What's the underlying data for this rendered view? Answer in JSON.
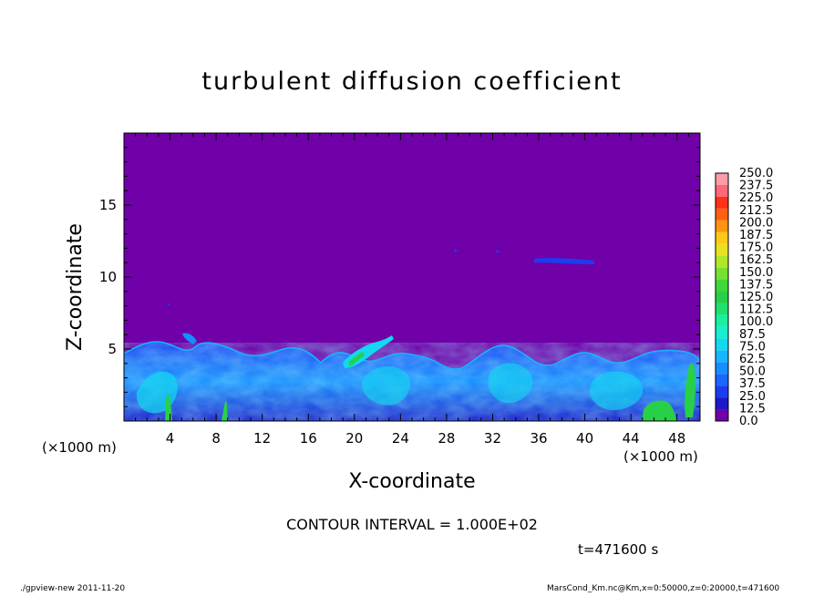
{
  "chart_data": {
    "type": "heatmap",
    "title": "turbulent diffusion coefficient",
    "xlabel": "X-coordinate",
    "ylabel": "Z-coordinate",
    "x_unit": "(×1000 m)",
    "z_unit": "(×1000 m)",
    "xlim": [
      0,
      50
    ],
    "ylim": [
      0,
      20
    ],
    "x_ticks": [
      4,
      8,
      12,
      16,
      20,
      24,
      28,
      32,
      36,
      40,
      44,
      48
    ],
    "y_ticks": [
      5,
      10,
      15
    ],
    "colorbar": {
      "levels": [
        "0.0",
        "12.5",
        "25.0",
        "37.5",
        "50.0",
        "62.5",
        "75.0",
        "87.5",
        "100.0",
        "112.5",
        "125.0",
        "137.5",
        "150.0",
        "162.5",
        "175.0",
        "187.5",
        "200.0",
        "212.5",
        "225.0",
        "237.5",
        "250.0"
      ],
      "colors": [
        "#7000a8",
        "#1d18c8",
        "#1c3cf0",
        "#1a66ff",
        "#148fff",
        "#16b6ff",
        "#12d8f0",
        "#18eed0",
        "#18f0a0",
        "#20e070",
        "#28d048",
        "#40d838",
        "#78e030",
        "#b0e828",
        "#e8e020",
        "#ffc818",
        "#ff9410",
        "#ff6010",
        "#ff3018",
        "#ff6878",
        "#ff9ca8"
      ]
    },
    "background_value": "0.0",
    "contour_interval": "CONTOUR INTERVAL = 1.000E+02",
    "time": "t=471600 s"
  },
  "footer": {
    "left": "./gpview-new   2011-11-20",
    "right": "MarsCond_Km.nc@Km,x=0:50000,z=0:20000,t=471600"
  }
}
